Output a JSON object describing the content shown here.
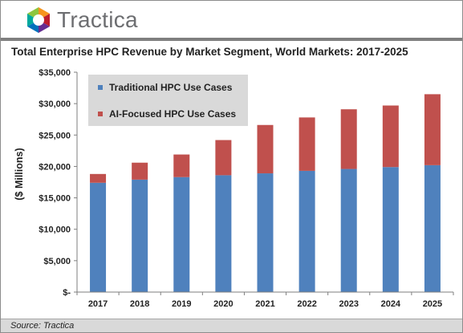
{
  "brand": {
    "name": "Tractica",
    "logo_icon": "tractica-hexagon-logo"
  },
  "chart_data": {
    "type": "bar",
    "stacked": true,
    "title": "Total Enterprise HPC Revenue by Market Segment, World Markets: 2017-2025",
    "xlabel": "",
    "ylabel": "($ Millions)",
    "ylim": [
      0,
      35000
    ],
    "yticks": [
      0,
      5000,
      10000,
      15000,
      20000,
      25000,
      30000,
      35000
    ],
    "ytick_labels": [
      "$-",
      "$5,000",
      "$10,000",
      "$15,000",
      "$20,000",
      "$25,000",
      "$30,000",
      "$35,000"
    ],
    "categories": [
      "2017",
      "2018",
      "2019",
      "2020",
      "2021",
      "2022",
      "2023",
      "2024",
      "2025"
    ],
    "series": [
      {
        "name": "Traditional HPC Use Cases",
        "color": "#4f81bd",
        "values": [
          17400,
          17900,
          18300,
          18600,
          18900,
          19300,
          19600,
          19900,
          20200
        ]
      },
      {
        "name": "AI-Focused HPC Use Cases",
        "color": "#c0504d",
        "values": [
          1400,
          2700,
          3600,
          5600,
          7700,
          8500,
          9500,
          9800,
          11300
        ]
      }
    ],
    "grid": false,
    "legend_position": "top-left"
  },
  "source": "Source: Tractica"
}
